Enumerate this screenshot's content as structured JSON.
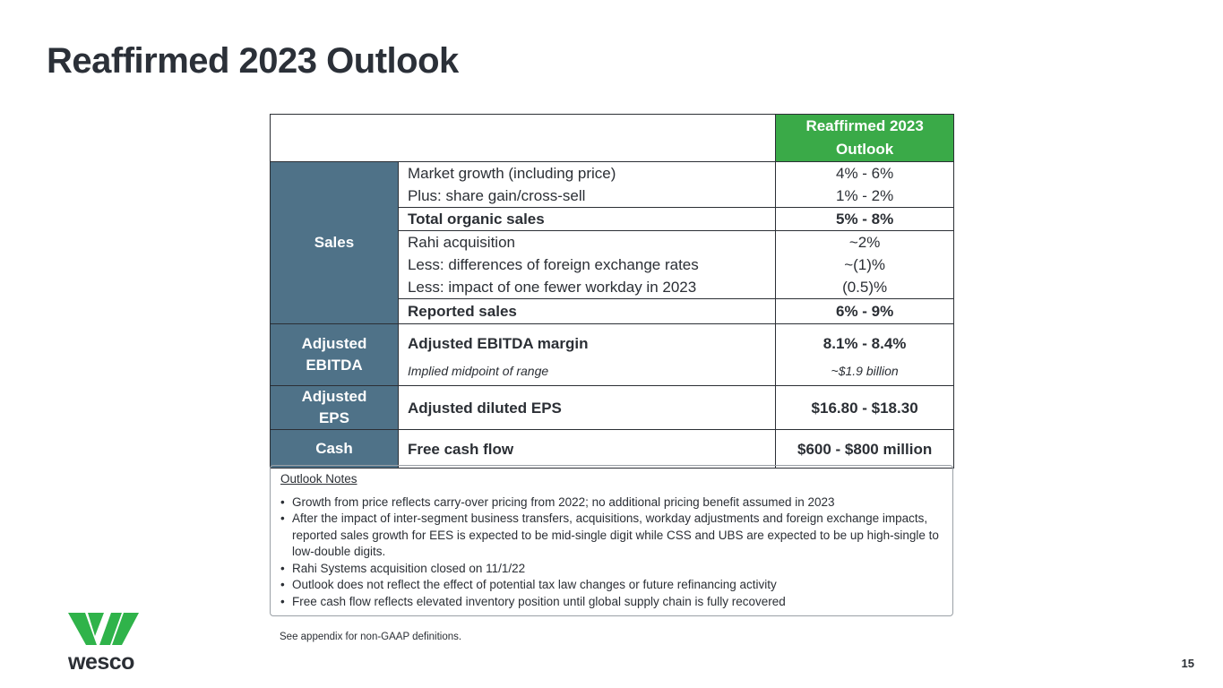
{
  "title": "Reaffirmed 2023 Outlook",
  "table": {
    "header": "Reaffirmed 2023 Outlook",
    "sales": {
      "label": "Sales",
      "rows": [
        {
          "item": "Market growth (including price)",
          "value": "4% - 6%"
        },
        {
          "item": "Plus: share gain/cross-sell",
          "value": "1% - 2%"
        },
        {
          "item": "Total organic sales",
          "value": "5% - 8%"
        },
        {
          "item": "Rahi acquisition",
          "value": "~2%"
        },
        {
          "item": "Less: differences of foreign exchange rates",
          "value": "~(1)%"
        },
        {
          "item": "Less: impact of one fewer workday in 2023",
          "value": "(0.5)%"
        },
        {
          "item": "Reported sales",
          "value": "6% - 9%"
        }
      ]
    },
    "ebitda": {
      "label": "Adjusted EBITDA",
      "item": "Adjusted EBITDA margin",
      "value": "8.1% - 8.4%",
      "sub_item": "Implied midpoint of range",
      "sub_value": "~$1.9 billion"
    },
    "eps": {
      "label": "Adjusted EPS",
      "item": "Adjusted diluted EPS",
      "value": "$16.80 - $18.30"
    },
    "cash": {
      "label": "Cash",
      "item": "Free cash flow",
      "value": "$600 - $800 million"
    }
  },
  "notes": {
    "heading": "Outlook Notes",
    "items": [
      "Growth from price reflects carry-over pricing from 2022; no additional pricing benefit assumed in 2023",
      "After the impact of inter-segment business transfers, acquisitions, workday adjustments and foreign exchange impacts, reported sales growth for EES is expected to be mid-single digit while CSS and UBS are expected to be up high-single to low-double digits.",
      "Rahi Systems acquisition closed on 11/1/22",
      "Outlook does not reflect the effect of potential tax law changes or future refinancing activity",
      "Free cash flow reflects elevated inventory position until global supply chain is fully recovered"
    ]
  },
  "footnote": "See appendix for non-GAAP definitions.",
  "page_number": "15",
  "logo_text": "wesco",
  "colors": {
    "green": "#3aaa48",
    "slate": "#4f7288"
  }
}
